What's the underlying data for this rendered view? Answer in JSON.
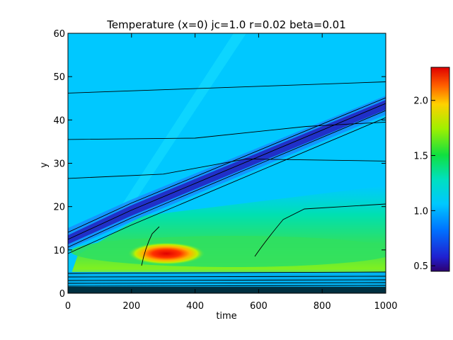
{
  "chart_data": {
    "type": "heatmap",
    "title": "Temperature (x=0) jc=1.0 r=0.02 beta=0.01",
    "xlabel": "time",
    "ylabel": "y",
    "xlim": [
      0,
      1000
    ],
    "ylim": [
      0,
      60
    ],
    "x_ticks": [
      "0",
      "200",
      "400",
      "600",
      "800",
      "1000"
    ],
    "y_ticks": [
      "0",
      "10",
      "20",
      "30",
      "40",
      "50",
      "60"
    ],
    "colorbar": {
      "range": [
        0.45,
        2.3
      ],
      "ticks": [
        "0.5",
        "1.0",
        "1.5",
        "2.0"
      ],
      "colormap": "rainbow"
    },
    "background_value": 1.05,
    "features": [
      {
        "name": "cold front band",
        "value": 0.5,
        "from": [
          0,
          11
        ],
        "to": [
          1000,
          43
        ]
      },
      {
        "name": "warm region",
        "value": 1.6,
        "time_range": [
          80,
          1000
        ],
        "y_range": [
          5,
          32
        ]
      },
      {
        "name": "hot spot",
        "value": 2.3,
        "time": 260,
        "y": 9
      }
    ],
    "contours": [
      {
        "points": [
          [
            0,
            46.2
          ],
          [
            1000,
            48.8
          ]
        ]
      },
      {
        "points": [
          [
            0,
            35.5
          ],
          [
            400,
            35.8
          ],
          [
            750,
            38.5
          ],
          [
            1000,
            39.5
          ]
        ]
      },
      {
        "points": [
          [
            0,
            26.5
          ],
          [
            300,
            27.5
          ],
          [
            560,
            31
          ],
          [
            1000,
            30.5
          ]
        ]
      }
    ],
    "colors": {
      "background": "#00c8ff",
      "cold": "#2020c0",
      "warm": "#30e060",
      "hot": "#e00000"
    }
  }
}
